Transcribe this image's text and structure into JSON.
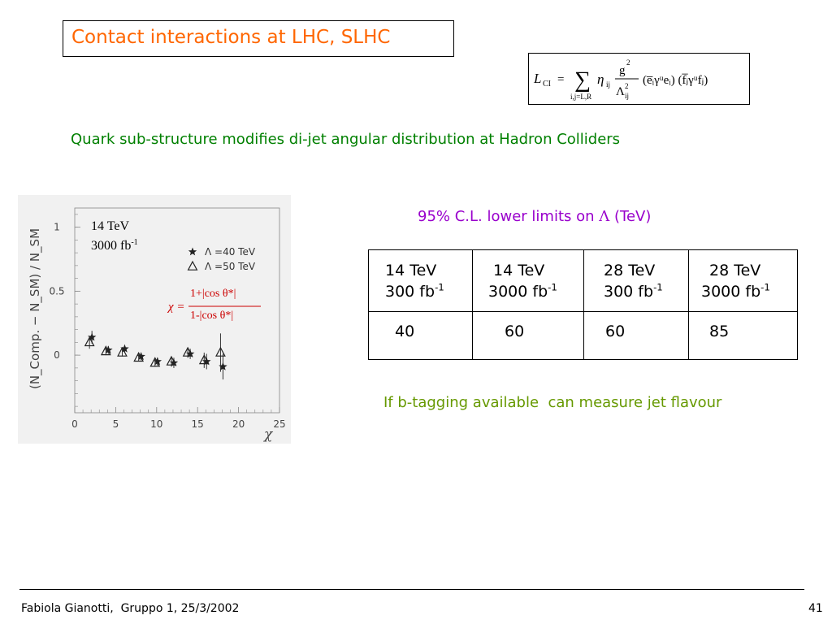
{
  "slide": {
    "title": "Contact interactions at LHC, SLHC",
    "subtitle": "Quark sub-structure modifies di-jet angular distribution at Hadron Colliders",
    "cl_label_prefix": "95% C.L. lower limits on ",
    "cl_label_symbol": "Λ",
    "cl_label_suffix": " (TeV)",
    "btag_note": "If b-tagging available  can measure jet flavour",
    "footer_left": "Fabiola Gianotti,  Gruppo 1, 25/3/2002",
    "page_number": "41"
  },
  "formula": {
    "lhs_symbol": "L",
    "lhs_sub": "CI",
    "equals": "=",
    "sum": "∑",
    "sum_limits": "i,j=L,R",
    "eta": "η",
    "eta_sub": "ij",
    "numerator": "g",
    "numerator_exp": "2",
    "denominator": "Λ",
    "denominator_exp": "2",
    "denominator_sub": "ij",
    "currents": "(e̅ᵢγᵘeᵢ) (f̅ⱼγᵘfⱼ)"
  },
  "table": {
    "headers": [
      {
        "energy": "14 TeV",
        "lumi": "300 fb",
        "exp": "-1"
      },
      {
        "energy": "14 TeV",
        "lumi": "3000 fb",
        "exp": "-1"
      },
      {
        "energy": "28 TeV",
        "lumi": "300 fb",
        "exp": "-1"
      },
      {
        "energy": "28 TeV",
        "lumi": "3000 fb",
        "exp": "-1"
      }
    ],
    "values": [
      "40",
      "60",
      "60",
      "85"
    ]
  },
  "chart_data": {
    "type": "scatter",
    "title": "",
    "xlabel": "χ",
    "ylabel": "(N_Comp. − N_SM) / N_SM",
    "xlim": [
      0,
      25
    ],
    "ylim": [
      -0.45,
      1.15
    ],
    "x_ticks": [
      "0",
      "5",
      "10",
      "15",
      "20",
      "25"
    ],
    "y_ticks": [
      "0",
      "0.5",
      "1"
    ],
    "annotation_energy": "14 TeV",
    "annotation_lumi": "3000 fb",
    "annotation_lumi_exp": "-1",
    "chi_def": {
      "lhs": "χ =",
      "numerator": "1+|cos θ*|",
      "denominator": "1-|cos θ*|"
    },
    "series": [
      {
        "name": "Λ =40 TeV",
        "symbol": "star",
        "x": [
          2,
          4,
          6,
          8,
          10,
          12,
          14,
          16,
          18
        ],
        "y": [
          0.14,
          0.04,
          0.05,
          -0.01,
          -0.05,
          -0.06,
          0.01,
          -0.05,
          -0.09
        ],
        "err": [
          0.05,
          0.03,
          0.03,
          0.03,
          0.03,
          0.04,
          0.04,
          0.06,
          0.1
        ]
      },
      {
        "name": "Λ =50 TeV",
        "symbol": "triangle",
        "x": [
          2,
          4,
          6,
          8,
          10,
          12,
          14,
          16,
          18
        ],
        "y": [
          0.1,
          0.03,
          0.02,
          -0.02,
          -0.06,
          -0.05,
          0.02,
          -0.04,
          0.02
        ],
        "err": [
          0.05,
          0.03,
          0.03,
          0.03,
          0.03,
          0.04,
          0.04,
          0.06,
          0.15
        ]
      }
    ]
  }
}
